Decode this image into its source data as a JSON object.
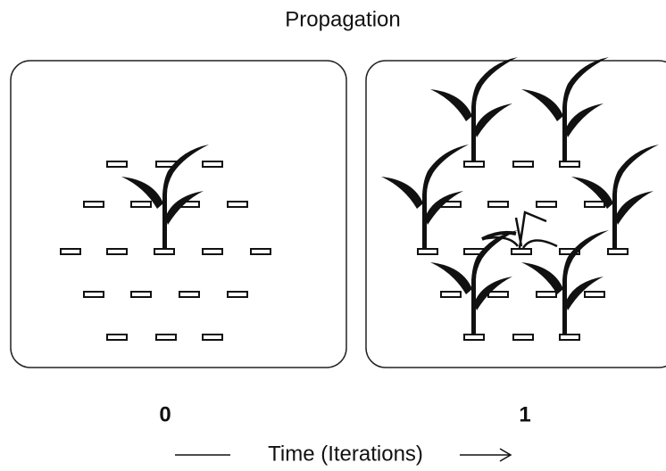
{
  "title": "Propagation",
  "panels": [
    {
      "label": "0"
    },
    {
      "label": "1"
    }
  ],
  "axis_label": "Time (Iterations)"
}
